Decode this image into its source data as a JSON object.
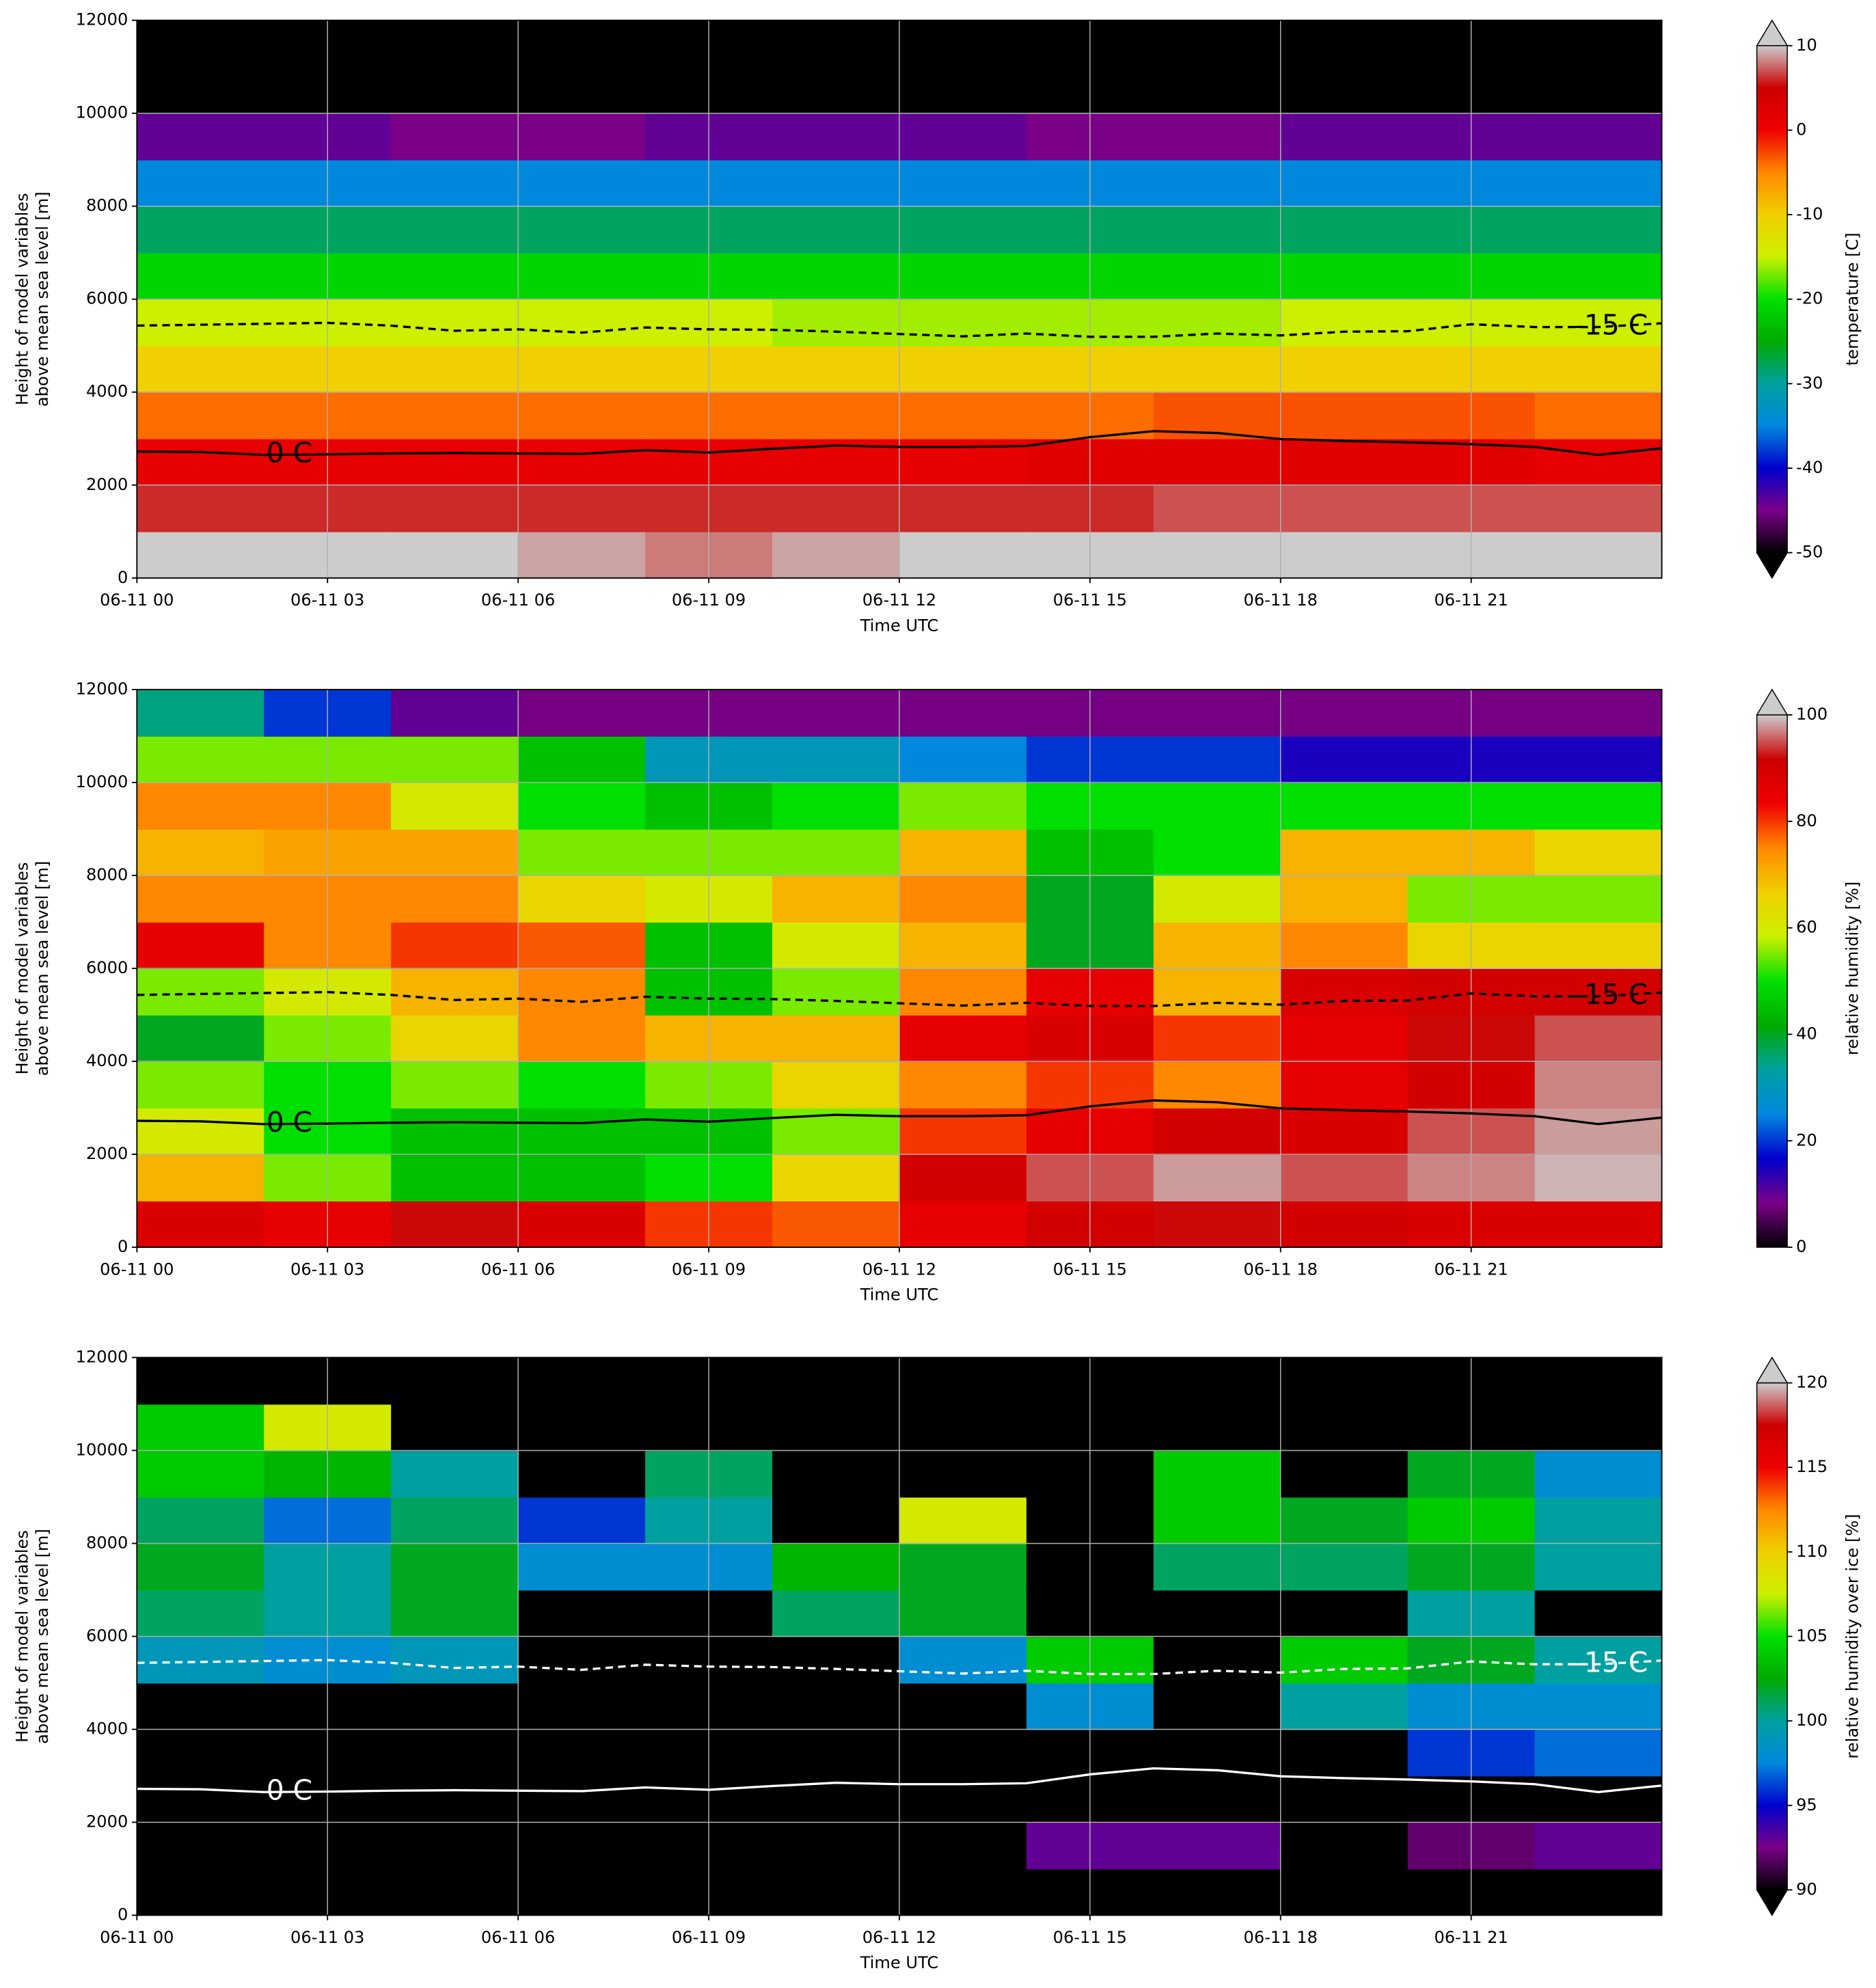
{
  "chart_data": [
    {
      "type": "heatmap",
      "xlabel": "Time UTC",
      "ylabel": [
        "Height of model variables",
        "above mean sea level [m]"
      ],
      "xlim": [
        0,
        24
      ],
      "ylim": [
        0,
        12000
      ],
      "xticks": [
        {
          "value": 0,
          "label": "06-11 00"
        },
        {
          "value": 3,
          "label": "06-11 03"
        },
        {
          "value": 6,
          "label": "06-11 06"
        },
        {
          "value": 9,
          "label": "06-11 09"
        },
        {
          "value": 12,
          "label": "06-11 12"
        },
        {
          "value": 15,
          "label": "06-11 15"
        },
        {
          "value": 18,
          "label": "06-11 18"
        },
        {
          "value": 21,
          "label": "06-11 21"
        }
      ],
      "yticks": [
        0,
        2000,
        4000,
        6000,
        8000,
        10000,
        12000
      ],
      "grid": true,
      "x": [
        1,
        3,
        5,
        7,
        9,
        11,
        13,
        15,
        17,
        19,
        21,
        23
      ],
      "y": [
        500,
        1500,
        2500,
        3500,
        4500,
        5500,
        6500,
        7500,
        8500,
        9500,
        10500,
        11500
      ],
      "z": [
        [
          11,
          11,
          11,
          9,
          8,
          9,
          11,
          11,
          11,
          11,
          11,
          11
        ],
        [
          6,
          6,
          6,
          6,
          6,
          6,
          6,
          6,
          7,
          7,
          7,
          7
        ],
        [
          1,
          1,
          1,
          1,
          1,
          1,
          1,
          2,
          2,
          2,
          2,
          1
        ],
        [
          -4,
          -4,
          -4,
          -4,
          -4,
          -4,
          -4,
          -4,
          -3,
          -3,
          -3,
          -4
        ],
        [
          -10,
          -10,
          -10,
          -10,
          -10,
          -10,
          -10,
          -10,
          -10,
          -10,
          -10,
          -10
        ],
        [
          -15,
          -15,
          -15,
          -15,
          -15,
          -16,
          -16,
          -16,
          -16,
          -15,
          -15,
          -15
        ],
        [
          -21,
          -21,
          -21,
          -21,
          -21,
          -21,
          -21,
          -21,
          -21,
          -21,
          -21,
          -21
        ],
        [
          -28,
          -28,
          -28,
          -28,
          -28,
          -28,
          -28,
          -28,
          -28,
          -28,
          -28,
          -28
        ],
        [
          -35,
          -35,
          -35,
          -35,
          -35,
          -35,
          -35,
          -35,
          -35,
          -35,
          -35,
          -35
        ],
        [
          -44,
          -44,
          -45,
          -45,
          -44,
          -44,
          -44,
          -45,
          -45,
          -44,
          -44,
          -44
        ],
        [
          -55,
          -55,
          -55,
          -55,
          -55,
          -55,
          -55,
          -55,
          -55,
          -55,
          -55,
          -55
        ],
        [
          -55,
          -55,
          -55,
          -54,
          -53,
          -52,
          -52,
          -53,
          -54,
          -55,
          -55,
          -55
        ]
      ],
      "colormap": [
        "#000000",
        "#7a0088",
        "#0000cc",
        "#0088dd",
        "#00a0a0",
        "#00aa00",
        "#00e000",
        "#ccf000",
        "#f0d000",
        "#ff8800",
        "#ee0000",
        "#cc0000",
        "#cccccc"
      ],
      "under_color": "#000000",
      "over_color": "#cccccc",
      "colorbar": {
        "label": "temperature [C]",
        "lim": [
          -50,
          10
        ],
        "ticks": [
          -50,
          -40,
          -30,
          -20,
          -10,
          0,
          10
        ],
        "extend": "both"
      },
      "contour_x": [
        0,
        1,
        2,
        3,
        4,
        5,
        6,
        7,
        8,
        9,
        10,
        11,
        12,
        13,
        14,
        15,
        16,
        17,
        18,
        19,
        20,
        21,
        22,
        23,
        24
      ],
      "contours": [
        {
          "name": "0 C",
          "color": "#000000",
          "dashed": false,
          "values": [
            2720,
            2710,
            2650,
            2660,
            2680,
            2690,
            2680,
            2670,
            2750,
            2700,
            2780,
            2850,
            2820,
            2820,
            2840,
            3030,
            3160,
            3120,
            2990,
            2950,
            2920,
            2880,
            2820,
            2650,
            2790
          ]
        },
        {
          "name": "-15 C",
          "color": "#000000",
          "dashed": true,
          "values": [
            5430,
            5450,
            5470,
            5490,
            5430,
            5320,
            5350,
            5280,
            5390,
            5350,
            5340,
            5300,
            5250,
            5200,
            5260,
            5190,
            5190,
            5260,
            5220,
            5300,
            5310,
            5460,
            5400,
            5400,
            5480
          ]
        }
      ]
    },
    {
      "type": "heatmap",
      "xlabel": "Time UTC",
      "ylabel": [
        "Height of model variables",
        "above mean sea level [m]"
      ],
      "xlim": [
        0,
        24
      ],
      "ylim": [
        0,
        12000
      ],
      "xticks": [
        {
          "value": 0,
          "label": "06-11 00"
        },
        {
          "value": 3,
          "label": "06-11 03"
        },
        {
          "value": 6,
          "label": "06-11 06"
        },
        {
          "value": 9,
          "label": "06-11 09"
        },
        {
          "value": 12,
          "label": "06-11 12"
        },
        {
          "value": 15,
          "label": "06-11 15"
        },
        {
          "value": 18,
          "label": "06-11 18"
        },
        {
          "value": 21,
          "label": "06-11 21"
        }
      ],
      "yticks": [
        0,
        2000,
        4000,
        6000,
        8000,
        10000,
        12000
      ],
      "grid": true,
      "x": [
        1,
        3,
        5,
        7,
        9,
        11,
        13,
        15,
        17,
        19,
        21,
        23
      ],
      "y": [
        500,
        1500,
        2500,
        3500,
        4500,
        5500,
        6500,
        7500,
        8500,
        9500,
        10500,
        11500
      ],
      "z": [
        [
          88,
          85,
          92,
          88,
          80,
          78,
          85,
          90,
          92,
          90,
          88,
          88
        ],
        [
          70,
          55,
          45,
          45,
          50,
          65,
          90,
          95,
          98,
          95,
          97,
          99
        ],
        [
          60,
          50,
          45,
          45,
          45,
          55,
          80,
          85,
          90,
          88,
          95,
          98
        ],
        [
          55,
          50,
          55,
          50,
          55,
          65,
          75,
          80,
          75,
          85,
          90,
          97
        ],
        [
          40,
          55,
          65,
          75,
          70,
          70,
          85,
          88,
          80,
          85,
          92,
          95
        ],
        [
          55,
          60,
          70,
          75,
          45,
          55,
          75,
          85,
          70,
          88,
          90,
          90
        ],
        [
          85,
          75,
          80,
          78,
          45,
          60,
          70,
          40,
          70,
          75,
          65,
          65
        ],
        [
          75,
          75,
          75,
          65,
          60,
          70,
          75,
          40,
          60,
          70,
          55,
          55
        ],
        [
          70,
          72,
          72,
          55,
          55,
          55,
          70,
          45,
          50,
          70,
          70,
          65
        ],
        [
          75,
          75,
          60,
          50,
          45,
          50,
          55,
          50,
          50,
          50,
          50,
          50
        ],
        [
          55,
          55,
          55,
          45,
          30,
          30,
          25,
          20,
          20,
          15,
          15,
          15
        ],
        [
          35,
          20,
          10,
          8,
          8,
          8,
          8,
          8,
          8,
          8,
          8,
          8
        ]
      ],
      "colormap": [
        "#000000",
        "#7a0088",
        "#0000cc",
        "#0088dd",
        "#00a0a0",
        "#00aa00",
        "#00e000",
        "#ccf000",
        "#f0d000",
        "#ff8800",
        "#ee0000",
        "#cc0000",
        "#cccccc"
      ],
      "under_color": "#000000",
      "over_color": "#cccccc",
      "colorbar": {
        "label": "relative humidity [%]",
        "lim": [
          0,
          100
        ],
        "ticks": [
          0,
          20,
          40,
          60,
          80,
          100
        ],
        "extend": "max"
      },
      "contour_x": [
        0,
        1,
        2,
        3,
        4,
        5,
        6,
        7,
        8,
        9,
        10,
        11,
        12,
        13,
        14,
        15,
        16,
        17,
        18,
        19,
        20,
        21,
        22,
        23,
        24
      ],
      "contours": [
        {
          "name": "0 C",
          "color": "#000000",
          "dashed": false,
          "values": [
            2720,
            2710,
            2650,
            2660,
            2680,
            2690,
            2680,
            2670,
            2750,
            2700,
            2780,
            2850,
            2820,
            2820,
            2840,
            3030,
            3160,
            3120,
            2990,
            2950,
            2920,
            2880,
            2820,
            2650,
            2790
          ]
        },
        {
          "name": "-15 C",
          "color": "#000000",
          "dashed": true,
          "values": [
            5430,
            5450,
            5470,
            5490,
            5430,
            5320,
            5350,
            5280,
            5390,
            5350,
            5340,
            5300,
            5250,
            5200,
            5260,
            5190,
            5190,
            5260,
            5220,
            5300,
            5310,
            5460,
            5400,
            5400,
            5480
          ]
        }
      ]
    },
    {
      "type": "heatmap",
      "xlabel": "Time UTC",
      "ylabel": [
        "Height of model variables",
        "above mean sea level [m]"
      ],
      "xlim": [
        0,
        24
      ],
      "ylim": [
        0,
        12000
      ],
      "xticks": [
        {
          "value": 0,
          "label": "06-11 00"
        },
        {
          "value": 3,
          "label": "06-11 03"
        },
        {
          "value": 6,
          "label": "06-11 06"
        },
        {
          "value": 9,
          "label": "06-11 09"
        },
        {
          "value": 12,
          "label": "06-11 12"
        },
        {
          "value": 15,
          "label": "06-11 15"
        },
        {
          "value": 18,
          "label": "06-11 18"
        },
        {
          "value": 21,
          "label": "06-11 21"
        }
      ],
      "yticks": [
        0,
        2000,
        4000,
        6000,
        8000,
        10000,
        12000
      ],
      "grid": true,
      "x": [
        1,
        3,
        5,
        7,
        9,
        11,
        13,
        15,
        17,
        19,
        21,
        23
      ],
      "y": [
        500,
        1500,
        2500,
        3500,
        4500,
        5500,
        6500,
        7500,
        8500,
        9500,
        10500,
        11500
      ],
      "z": [
        [
          80,
          80,
          80,
          80,
          80,
          80,
          80,
          80,
          80,
          80,
          80,
          80
        ],
        [
          80,
          80,
          80,
          80,
          80,
          80,
          80,
          93,
          93,
          80,
          92,
          93
        ],
        [
          80,
          80,
          80,
          80,
          80,
          80,
          80,
          80,
          80,
          80,
          80,
          80
        ],
        [
          80,
          80,
          80,
          80,
          80,
          80,
          80,
          80,
          80,
          80,
          96,
          97
        ],
        [
          80,
          80,
          80,
          80,
          80,
          80,
          80,
          98,
          80,
          100,
          98,
          98
        ],
        [
          99,
          98,
          99,
          80,
          80,
          80,
          98,
          104,
          80,
          104,
          102,
          100
        ],
        [
          101,
          100,
          102,
          80,
          80,
          101,
          102,
          80,
          80,
          80,
          100,
          80
        ],
        [
          102,
          100,
          102,
          98,
          98,
          103,
          102,
          80,
          101,
          101,
          102,
          100
        ],
        [
          101,
          97,
          101,
          96,
          100,
          80,
          108,
          80,
          104,
          102,
          104,
          100
        ],
        [
          104,
          103,
          100,
          80,
          101,
          80,
          80,
          80,
          104,
          80,
          102,
          98
        ],
        [
          104,
          108,
          80,
          80,
          80,
          80,
          80,
          80,
          80,
          80,
          80,
          80
        ],
        [
          80,
          80,
          80,
          80,
          80,
          80,
          80,
          80,
          80,
          80,
          80,
          80
        ]
      ],
      "colormap": [
        "#000000",
        "#7a0088",
        "#0000cc",
        "#0088dd",
        "#00a0a0",
        "#00aa00",
        "#00e000",
        "#ccf000",
        "#f0d000",
        "#ff8800",
        "#ee0000",
        "#cc0000",
        "#cccccc"
      ],
      "under_color": "#000000",
      "over_color": "#cccccc",
      "colorbar": {
        "label": "relative humidity over ice [%]",
        "lim": [
          90,
          120
        ],
        "ticks": [
          90,
          95,
          100,
          105,
          110,
          115,
          120
        ],
        "extend": "both"
      },
      "contour_x": [
        0,
        1,
        2,
        3,
        4,
        5,
        6,
        7,
        8,
        9,
        10,
        11,
        12,
        13,
        14,
        15,
        16,
        17,
        18,
        19,
        20,
        21,
        22,
        23,
        24
      ],
      "contours": [
        {
          "name": "0 C",
          "color": "#ffffff",
          "dashed": false,
          "values": [
            2720,
            2710,
            2650,
            2660,
            2680,
            2690,
            2680,
            2670,
            2750,
            2700,
            2780,
            2850,
            2820,
            2820,
            2840,
            3030,
            3160,
            3120,
            2990,
            2950,
            2920,
            2880,
            2820,
            2650,
            2790
          ]
        },
        {
          "name": "-15 C",
          "color": "#ffffff",
          "dashed": true,
          "values": [
            5430,
            5450,
            5470,
            5490,
            5430,
            5320,
            5350,
            5280,
            5390,
            5350,
            5340,
            5300,
            5250,
            5200,
            5260,
            5190,
            5190,
            5260,
            5220,
            5300,
            5310,
            5460,
            5400,
            5400,
            5480
          ]
        }
      ]
    }
  ]
}
